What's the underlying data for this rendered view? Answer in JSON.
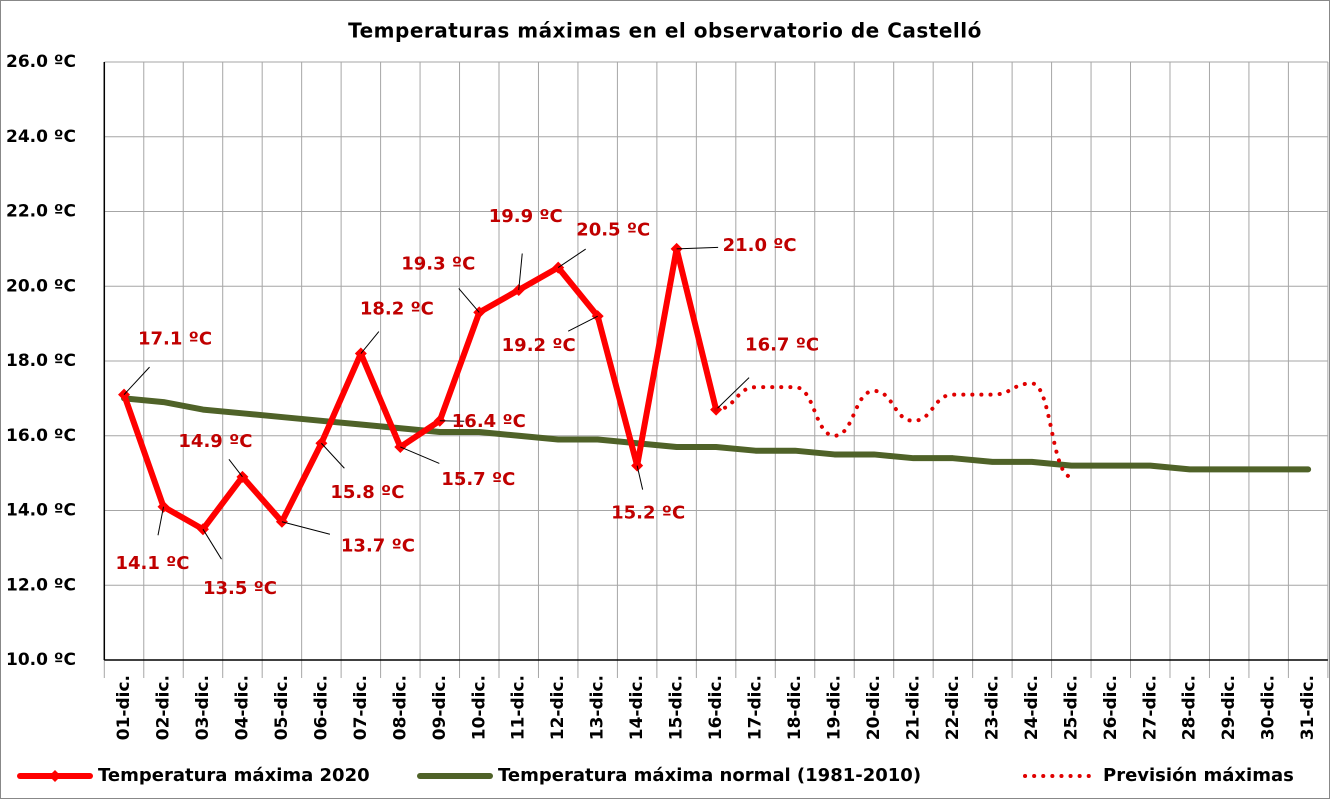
{
  "chart_data": {
    "type": "line",
    "title": "Temperaturas máximas en el observatorio de Castelló",
    "categories": [
      "01-dic.",
      "02-dic.",
      "03-dic.",
      "04-dic.",
      "05-dic.",
      "06-dic.",
      "07-dic.",
      "08-dic.",
      "09-dic.",
      "10-dic.",
      "11-dic.",
      "12-dic.",
      "13-dic.",
      "14-dic.",
      "15-dic.",
      "16-dic.",
      "17-dic.",
      "18-dic.",
      "19-dic.",
      "20-dic.",
      "21-dic.",
      "22-dic.",
      "23-dic.",
      "24-dic.",
      "25-dic.",
      "26-dic.",
      "27-dic.",
      "28-dic.",
      "29-dic.",
      "30-dic.",
      "31-dic."
    ],
    "series": [
      {
        "name": "Temperatura máxima 2020",
        "color": "#ff0000",
        "style": "solid",
        "marker": "diamond",
        "values": [
          17.1,
          14.1,
          13.5,
          14.9,
          13.7,
          15.8,
          18.2,
          15.7,
          16.4,
          19.3,
          19.9,
          20.5,
          19.2,
          15.2,
          21.0,
          16.7,
          null,
          null,
          null,
          null,
          null,
          null,
          null,
          null,
          null,
          null,
          null,
          null,
          null,
          null,
          null
        ],
        "value_labels": [
          "17.1 ºC",
          "14.1 ºC",
          "13.5 ºC",
          "14.9 ºC",
          "13.7 ºC",
          "15.8 ºC",
          "18.2 ºC",
          "15.7 ºC",
          "16.4 ºC",
          "19.3 ºC",
          "19.9 ºC",
          "20.5 ºC",
          "19.2 ºC",
          "15.2 ºC",
          "21.0 ºC",
          "16.7 ºC",
          null,
          null,
          null,
          null,
          null,
          null,
          null,
          null,
          null,
          null,
          null,
          null,
          null,
          null,
          null
        ]
      },
      {
        "name": "Temperatura máxima normal (1981-2010)",
        "color": "#4f6228",
        "style": "solid",
        "values": [
          17.0,
          16.9,
          16.7,
          16.6,
          16.5,
          16.4,
          16.3,
          16.2,
          16.1,
          16.1,
          16.0,
          15.9,
          15.9,
          15.8,
          15.7,
          15.7,
          15.6,
          15.6,
          15.5,
          15.5,
          15.4,
          15.4,
          15.3,
          15.3,
          15.2,
          15.2,
          15.2,
          15.1,
          15.1,
          15.1,
          15.1
        ]
      },
      {
        "name": "Previsión máximas",
        "color": "#e00000",
        "style": "dotted",
        "values": [
          null,
          null,
          null,
          null,
          null,
          null,
          null,
          null,
          null,
          null,
          null,
          null,
          null,
          null,
          null,
          16.7,
          17.3,
          17.3,
          16.0,
          17.2,
          16.4,
          17.1,
          17.1,
          17.4,
          14.9,
          null,
          null,
          null,
          null,
          null,
          null
        ]
      }
    ],
    "ylim": [
      10,
      26
    ],
    "yticks": [
      {
        "value": 10,
        "label": "10.0 ºC"
      },
      {
        "value": 12,
        "label": "12.0 ºC"
      },
      {
        "value": 14,
        "label": "14.0 ºC"
      },
      {
        "value": 16,
        "label": "16.0 ºC"
      },
      {
        "value": 18,
        "label": "18.0 ºC"
      },
      {
        "value": 20,
        "label": "20.0 ºC"
      },
      {
        "value": 22,
        "label": "22.0 ºC"
      },
      {
        "value": 24,
        "label": "24.0 ºC"
      },
      {
        "value": 26,
        "label": "26.0 ºC"
      }
    ],
    "grid": true,
    "legend": "bottom"
  }
}
